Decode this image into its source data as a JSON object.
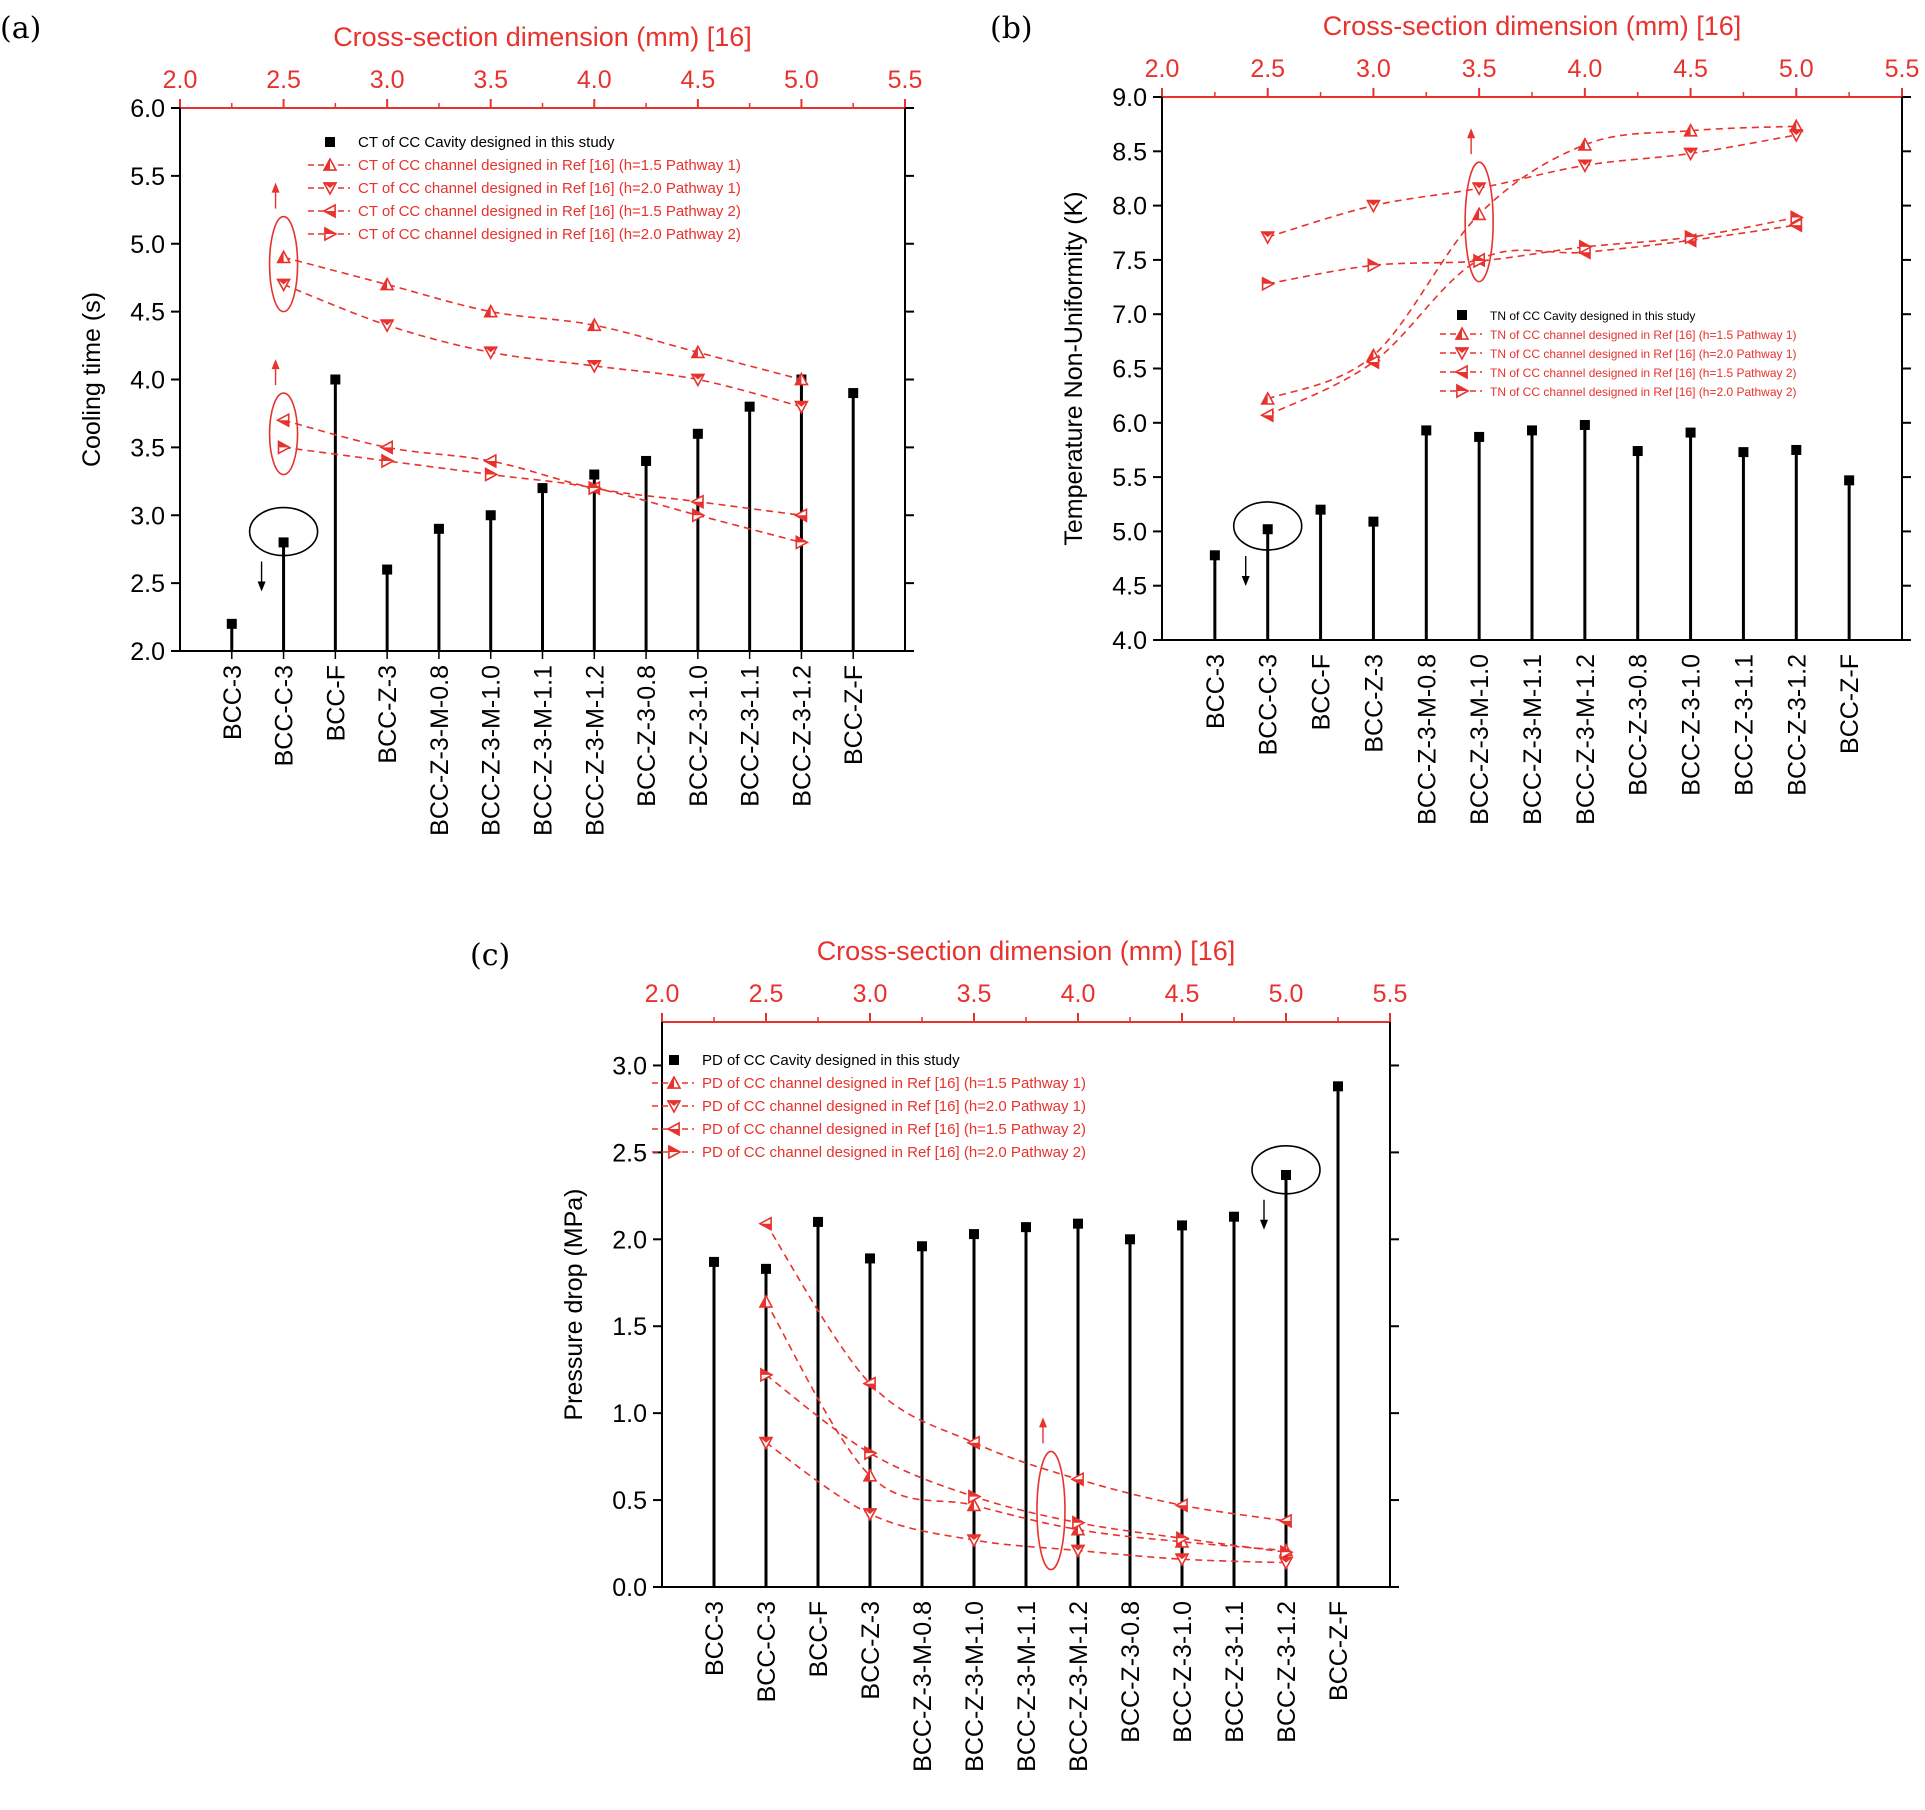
{
  "colors": {
    "black": "#000000",
    "red": "#e8322d"
  },
  "chart_data": [
    {
      "type": "scatter",
      "panel_label": "(a)",
      "top_axis": {
        "title": "Cross-section dimension (mm) [16]",
        "min": 2.0,
        "max": 5.5,
        "ticks": [
          "2.0",
          "2.5",
          "3.0",
          "3.5",
          "4.0",
          "4.5",
          "5.0",
          "5.5"
        ]
      },
      "left_axis": {
        "label": "Cooling time (s)",
        "min": 2.0,
        "max": 6.0,
        "ticks": [
          "2.0",
          "2.5",
          "3.0",
          "3.5",
          "4.0",
          "4.5",
          "5.0",
          "5.5",
          "6.0"
        ]
      },
      "categories": [
        "BCC-3",
        "BCC-C-3",
        "BCC-F",
        "BCC-Z-3",
        "BCC-Z-3-M-0.8",
        "BCC-Z-3-M-1.0",
        "BCC-Z-3-M-1.1",
        "BCC-Z-3-M-1.2",
        "BCC-Z-3-0.8",
        "BCC-Z-3-1.0",
        "BCC-Z-3-1.1",
        "BCC-Z-3-1.2",
        "BCC-Z-F"
      ],
      "cavity": {
        "name": "CT of CC Cavity designed in this study",
        "values": [
          2.2,
          2.8,
          4.0,
          2.6,
          2.9,
          3.0,
          3.2,
          3.3,
          3.4,
          3.6,
          3.8,
          4.0,
          3.9
        ]
      },
      "series": [
        {
          "name": "CT of CC channel designed in Ref [16] (h=1.5 Pathway 1)",
          "marker": "up",
          "x": [
            2.5,
            3.0,
            3.5,
            4.0,
            4.5,
            5.0
          ],
          "values": [
            4.9,
            4.7,
            4.5,
            4.4,
            4.2,
            4.0
          ]
        },
        {
          "name": "CT of CC channel designed in Ref [16] (h=2.0 Pathway 1)",
          "marker": "down",
          "x": [
            2.5,
            3.0,
            3.5,
            4.0,
            4.5,
            5.0
          ],
          "values": [
            4.7,
            4.4,
            4.2,
            4.1,
            4.0,
            3.8
          ]
        },
        {
          "name": "CT of CC channel designed in Ref [16] (h=1.5 Pathway 2)",
          "marker": "left",
          "x": [
            2.5,
            3.0,
            3.5,
            4.0,
            4.5,
            5.0
          ],
          "values": [
            3.7,
            3.5,
            3.4,
            3.2,
            3.1,
            3.0
          ]
        },
        {
          "name": "CT of CC channel designed in Ref [16] (h=2.0 Pathway 2)",
          "marker": "right",
          "x": [
            2.5,
            3.0,
            3.5,
            4.0,
            4.5,
            5.0
          ],
          "values": [
            3.5,
            3.4,
            3.3,
            3.2,
            3.0,
            2.8
          ]
        }
      ],
      "annotations": [
        {
          "color": "red",
          "shape": "ellipse",
          "x_top": 2.5,
          "y_low": 4.5,
          "y_high": 5.2,
          "arrow": "up"
        },
        {
          "color": "red",
          "shape": "ellipse",
          "x_top": 2.5,
          "y_low": 3.3,
          "y_high": 3.9,
          "arrow": "up"
        },
        {
          "color": "black",
          "shape": "ellipse",
          "category_index": 1,
          "y": 2.88,
          "arrow": "down"
        }
      ]
    },
    {
      "type": "scatter",
      "panel_label": "(b)",
      "top_axis": {
        "title": "Cross-section dimension (mm) [16]",
        "min": 2.0,
        "max": 5.5,
        "ticks": [
          "2.0",
          "2.5",
          "3.0",
          "3.5",
          "4.0",
          "4.5",
          "5.0",
          "5.5"
        ]
      },
      "left_axis": {
        "label": "Temperature Non-Uniformity (K)",
        "min": 4.0,
        "max": 9.0,
        "ticks": [
          "4.0",
          "4.5",
          "5.0",
          "5.5",
          "6.0",
          "6.5",
          "7.0",
          "7.5",
          "8.0",
          "8.5",
          "9.0"
        ]
      },
      "categories": [
        "BCC-3",
        "BCC-C-3",
        "BCC-F",
        "BCC-Z-3",
        "BCC-Z-3-M-0.8",
        "BCC-Z-3-M-1.0",
        "BCC-Z-3-M-1.1",
        "BCC-Z-3-M-1.2",
        "BCC-Z-3-0.8",
        "BCC-Z-3-1.0",
        "BCC-Z-3-1.1",
        "BCC-Z-3-1.2",
        "BCC-Z-F"
      ],
      "cavity": {
        "name": "TN of CC Cavity designed in this study",
        "values": [
          4.78,
          5.02,
          5.2,
          5.09,
          5.93,
          5.87,
          5.93,
          5.98,
          5.74,
          5.91,
          5.73,
          5.75,
          5.47
        ]
      },
      "series": [
        {
          "name": "TN of CC channel designed in Ref [16] (h=1.5 Pathway 1)",
          "marker": "up",
          "x": [
            2.5,
            3.0,
            3.5,
            4.0,
            4.5,
            5.0
          ],
          "values": [
            6.22,
            6.62,
            7.92,
            8.56,
            8.69,
            8.73
          ]
        },
        {
          "name": "TN of CC channel designed in Ref [16] (h=2.0 Pathway 1)",
          "marker": "down",
          "x": [
            2.5,
            3.0,
            3.5,
            4.0,
            4.5,
            5.0
          ],
          "values": [
            7.71,
            8.0,
            8.16,
            8.37,
            8.48,
            8.65
          ]
        },
        {
          "name": "TN of CC channel designed in Ref [16] (h=1.5 Pathway 2)",
          "marker": "left",
          "x": [
            2.5,
            3.0,
            3.5,
            4.0,
            4.5,
            5.0
          ],
          "values": [
            6.07,
            6.56,
            7.5,
            7.57,
            7.68,
            7.82
          ]
        },
        {
          "name": "TN of CC channel designed in Ref [16] (h=2.0 Pathway 2)",
          "marker": "right",
          "x": [
            2.5,
            3.0,
            3.5,
            4.0,
            4.5,
            5.0
          ],
          "values": [
            7.28,
            7.45,
            7.49,
            7.62,
            7.71,
            7.89
          ]
        }
      ],
      "annotations": [
        {
          "color": "red",
          "shape": "ellipse",
          "x_top": 3.5,
          "y_low": 7.3,
          "y_high": 8.4,
          "arrow": "up"
        },
        {
          "color": "black",
          "shape": "ellipse",
          "category_index": 1,
          "y": 5.05,
          "arrow": "down"
        }
      ]
    },
    {
      "type": "scatter",
      "panel_label": "(c)",
      "top_axis": {
        "title": "Cross-section dimension (mm) [16]",
        "min": 2.0,
        "max": 5.5,
        "ticks": [
          "2.0",
          "2.5",
          "3.0",
          "3.5",
          "4.0",
          "4.5",
          "5.0",
          "5.5"
        ]
      },
      "left_axis": {
        "label": "Pressure drop (MPa)",
        "min": 0.0,
        "max": 3.25,
        "ticks": [
          "0.0",
          "0.5",
          "1.0",
          "1.5",
          "2.0",
          "2.5",
          "3.0"
        ]
      },
      "categories": [
        "BCC-3",
        "BCC-C-3",
        "BCC-F",
        "BCC-Z-3",
        "BCC-Z-3-M-0.8",
        "BCC-Z-3-M-1.0",
        "BCC-Z-3-M-1.1",
        "BCC-Z-3-M-1.2",
        "BCC-Z-3-0.8",
        "BCC-Z-3-1.0",
        "BCC-Z-3-1.1",
        "BCC-Z-3-1.2",
        "BCC-Z-F"
      ],
      "cavity": {
        "name": "PD of CC Cavity designed in this study",
        "values": [
          1.87,
          1.83,
          2.1,
          1.89,
          1.96,
          2.03,
          2.07,
          2.09,
          2.0,
          2.08,
          2.13,
          2.37,
          2.88
        ]
      },
      "series": [
        {
          "name": "PD of CC channel designed in Ref [16] (h=1.5 Pathway 1)",
          "marker": "up",
          "x": [
            2.5,
            3.0,
            3.5,
            4.0,
            4.5,
            5.0
          ],
          "values": [
            1.64,
            0.64,
            0.47,
            0.33,
            0.26,
            0.21
          ]
        },
        {
          "name": "PD of CC channel designed in Ref [16] (h=2.0 Pathway 1)",
          "marker": "down",
          "x": [
            2.5,
            3.0,
            3.5,
            4.0,
            4.5,
            5.0
          ],
          "values": [
            0.83,
            0.42,
            0.27,
            0.21,
            0.16,
            0.14
          ]
        },
        {
          "name": "PD of CC channel designed in Ref [16] (h=1.5 Pathway 2)",
          "marker": "left",
          "x": [
            2.5,
            3.0,
            3.5,
            4.0,
            4.5,
            5.0
          ],
          "values": [
            2.09,
            1.17,
            0.83,
            0.62,
            0.47,
            0.38
          ]
        },
        {
          "name": "PD of CC channel designed in Ref [16] (h=2.0 Pathway 2)",
          "marker": "right",
          "x": [
            2.5,
            3.0,
            3.5,
            4.0,
            4.5,
            5.0
          ],
          "values": [
            1.22,
            0.77,
            0.52,
            0.37,
            0.28,
            0.2
          ]
        }
      ],
      "annotations": [
        {
          "color": "red",
          "shape": "ellipse",
          "x_top": 3.87,
          "y_low": 0.1,
          "y_high": 0.78,
          "arrow": "up"
        },
        {
          "color": "black",
          "shape": "ellipse",
          "category_index": 11,
          "y": 2.4,
          "arrow": "down"
        }
      ]
    }
  ]
}
